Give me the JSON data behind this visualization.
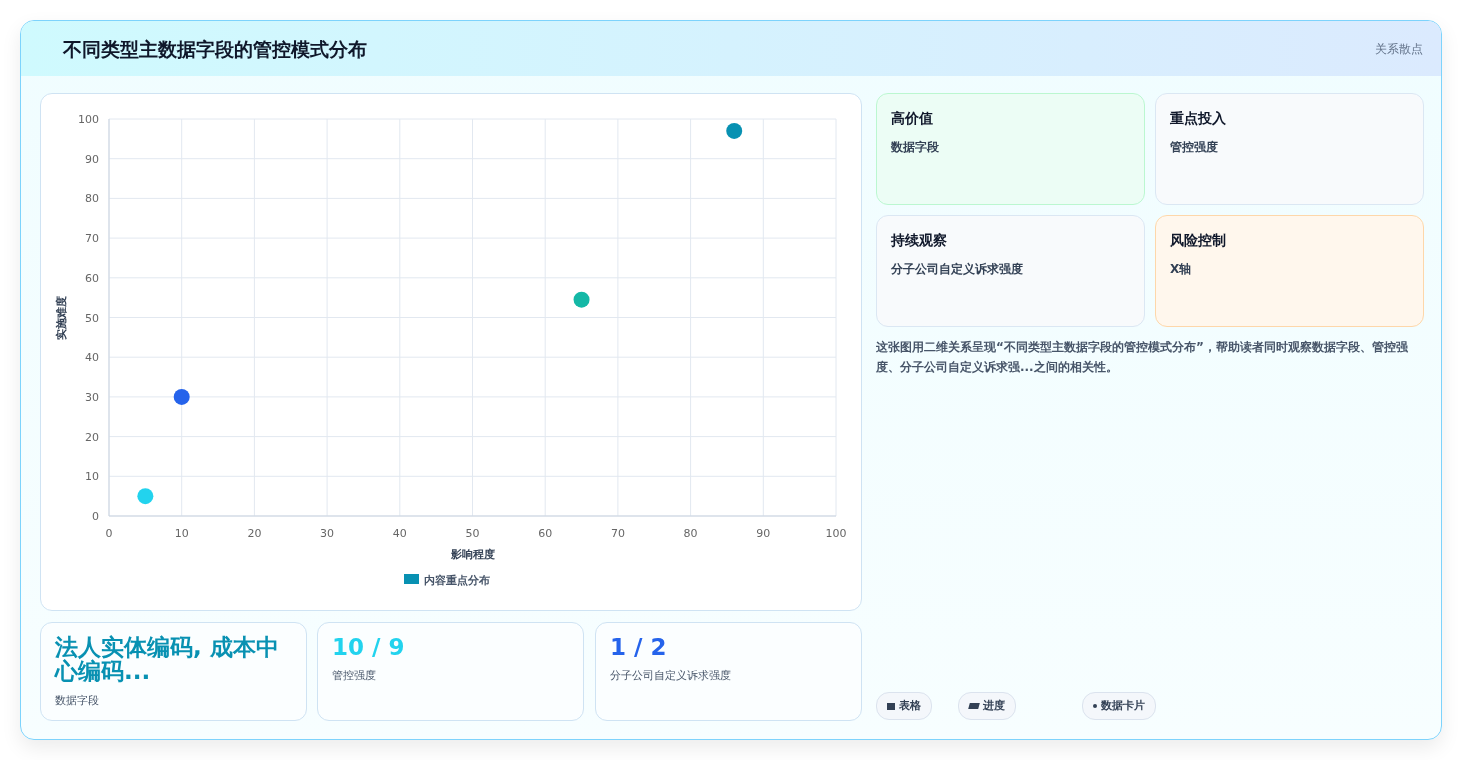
{
  "chart_data": [
    {
      "type": "scatter",
      "title": "不同类型主数据字段的管控模式分布",
      "xlabel": "影响程度",
      "ylabel": "实施难度",
      "x": [
        5,
        10,
        65,
        86
      ],
      "series": [
        {
          "name": "内容重点分布",
          "color": "#0891b2",
          "values": [
            5,
            30,
            54.5,
            97
          ],
          "colors": [
            "#22d3ee",
            "#2563eb",
            "#14b8a6",
            "#0891b2"
          ]
        }
      ],
      "xlim": [
        0,
        100
      ],
      "ylim": [
        0,
        100
      ],
      "xticks": [
        0,
        10,
        20,
        30,
        40,
        50,
        60,
        70,
        80,
        90,
        100
      ],
      "yticks": [
        0,
        10,
        20,
        30,
        40,
        50,
        60,
        70,
        80,
        90,
        100
      ],
      "grid": true,
      "legend": "bottom",
      "marker": "circle"
    },
    {
      "type": "other",
      "annotations": [
        "高价值",
        "数据字段",
        "重点投入",
        "管控强度",
        "持续观察",
        "分子公司自定义诉求强度",
        "风险控制",
        "X轴",
        "这张图用二维关系呈现“不同类型主数据字段的管控模式分布”，帮助读者同时观察数据字段、管控强度、分子公司自定义诉求强...之间的相关性。",
        "法人实体编码, 成本中心编码...",
        "数据字段",
        "10 / 9",
        "管控强度",
        "1 / 2",
        "分子公司自定义诉求强度",
        "表格",
        "进度",
        "数据卡片",
        "关系散点"
      ]
    }
  ]
}
